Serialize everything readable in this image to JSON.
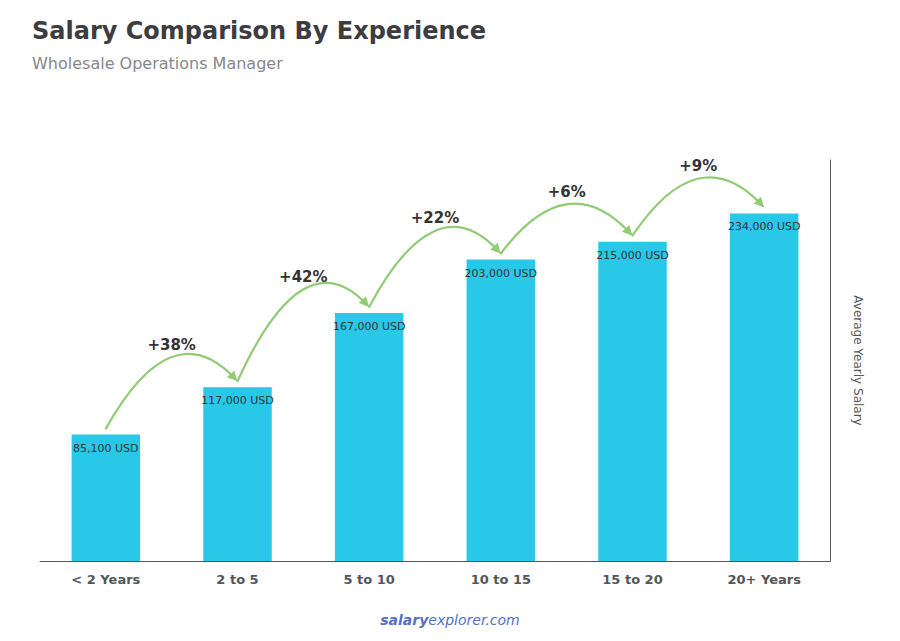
{
  "chart_data": {
    "type": "bar",
    "title": "Salary Comparison By Experience",
    "subtitle": "Wholesale Operations Manager",
    "categories": [
      "< 2 Years",
      "2 to 5",
      "5 to 10",
      "10 to 15",
      "15 to 20",
      "20+ Years"
    ],
    "values": [
      85100,
      117000,
      167000,
      203000,
      215000,
      234000
    ],
    "value_labels": [
      "85,100 USD",
      "117,000 USD",
      "167,000 USD",
      "203,000 USD",
      "215,000 USD",
      "234,000 USD"
    ],
    "data_labels": true,
    "color": "#29c7e8",
    "ylim": [
      0,
      270000
    ],
    "y_label": "Average Yearly Salary",
    "annotations": [
      {
        "text": "+38%",
        "from": "< 2 Years",
        "to": "2 to 5"
      },
      {
        "text": "+42%",
        "from": "2 to 5",
        "to": "5 to 10"
      },
      {
        "text": "+22%",
        "from": "5 to 10",
        "to": "10 to 15"
      },
      {
        "text": "+6%",
        "from": "10 to 15",
        "to": "15 to 20"
      },
      {
        "text": "+9%",
        "from": "15 to 20",
        "to": "20+ Years"
      }
    ],
    "watermark": [
      "salary",
      "explorer.com"
    ],
    "grid": false,
    "tick_labels": "x"
  }
}
